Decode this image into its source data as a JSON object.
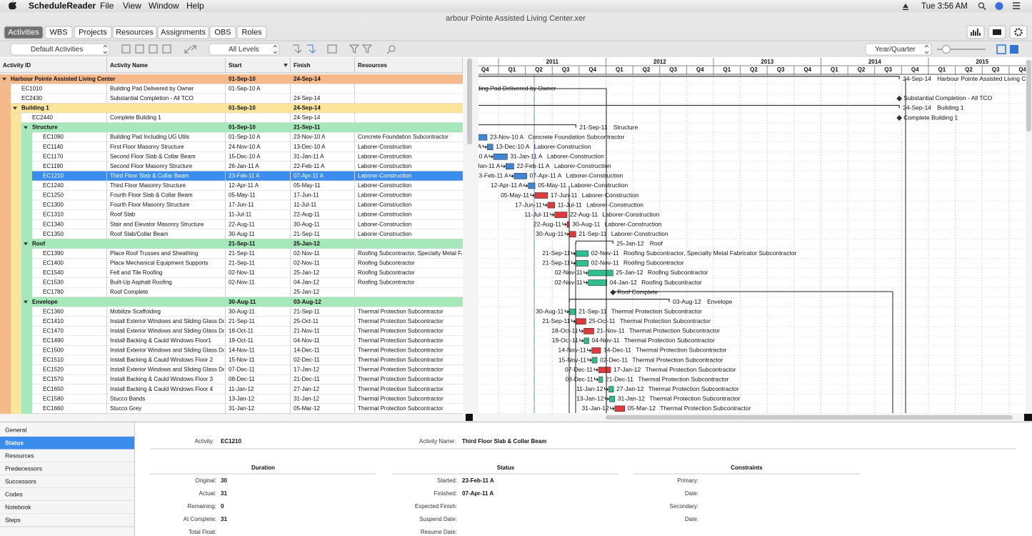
{
  "menubar": {
    "app": "ScheduleReader",
    "menus": [
      "File",
      "View",
      "Window",
      "Help"
    ],
    "clock": "Tue 3:56 AM"
  },
  "window_title": "arbour Pointe Assisted Living Center.xer",
  "tabs": [
    "Activities",
    "WBS",
    "Projects",
    "Resources",
    "Assignments",
    "OBS",
    "Roles"
  ],
  "active_tab": 0,
  "toolbar": {
    "layout": "Default Activities",
    "levels": "All Levels",
    "timescale": "Year/Quarter"
  },
  "timescale": {
    "years": [
      "2011",
      "2012",
      "2013",
      "2014",
      "2015"
    ],
    "quarters": [
      "Q1",
      "Q2",
      "Q3",
      "Q4"
    ]
  },
  "table": {
    "columns": [
      "Activity ID",
      "Activity Name",
      "Start",
      "Finish",
      "Resources"
    ],
    "selected_row": 10,
    "rows": [
      {
        "level": 0,
        "kind": "wbs",
        "id": "Harbour Pointe Assisted Living Center",
        "start": "01-Sep-10",
        "finish": "24-Sep-14"
      },
      {
        "level": 1,
        "kind": "milestone",
        "id": "EC1010",
        "name": "Building Pad Delivered by Owner",
        "start": "01-Sep-10 A"
      },
      {
        "level": 1,
        "kind": "milestone",
        "id": "EC2430",
        "name": "Substantial Completion - All TCO",
        "finish": "24-Sep-14"
      },
      {
        "level": 1,
        "kind": "wbs",
        "id": "Building 1",
        "start": "01-Sep-10",
        "finish": "24-Sep-14"
      },
      {
        "level": 2,
        "kind": "milestone",
        "id": "EC2440",
        "name": "Complete Building 1",
        "finish": "24-Sep-14"
      },
      {
        "level": 2,
        "kind": "wbs",
        "id": "Structure",
        "start": "01-Sep-10",
        "finish": "21-Sep-11"
      },
      {
        "level": 3,
        "kind": "task",
        "id": "EC1090",
        "name": "Building Pad Including UG Utils",
        "start": "01-Sep-10 A",
        "finish": "23-Nov-10 A",
        "resources": "Concrete Foundation Subcontractor",
        "color": "#3f86d6"
      },
      {
        "level": 3,
        "kind": "task",
        "id": "EC1140",
        "name": "First Floor Masonry Structure",
        "start": "24-Nov-10 A",
        "finish": "13-Dec-10 A",
        "resources": "Laborer-Construction",
        "color": "#3f86d6"
      },
      {
        "level": 3,
        "kind": "task",
        "id": "EC1170",
        "name": "Second Floor Slab & Collar Beam",
        "start": "15-Dec-10 A",
        "finish": "31-Jan-11 A",
        "resources": "Laborer-Construction",
        "color": "#3f86d6"
      },
      {
        "level": 3,
        "kind": "task",
        "id": "EC1190",
        "name": "Second Floor Masonry Structure",
        "start": "26-Jan-11 A",
        "finish": "22-Feb-11 A",
        "resources": "Laborer-Construction",
        "color": "#3f86d6"
      },
      {
        "level": 3,
        "kind": "task",
        "id": "EC1210",
        "name": "Third Floor Slab & Collar Beam",
        "start": "23-Feb-11 A",
        "finish": "07-Apr-11 A",
        "resources": "Laborer-Construction",
        "color": "#3f86d6"
      },
      {
        "level": 3,
        "kind": "task",
        "id": "EC1240",
        "name": "Third Floor Masonry Structure",
        "start": "12-Apr-11 A",
        "finish": "05-May-11",
        "resources": "Laborer-Construction",
        "color": "#3f86d6"
      },
      {
        "level": 3,
        "kind": "task",
        "id": "EC1250",
        "name": "Fourth Floor Slab & Collar Beam",
        "start": "05-May-11",
        "finish": "17-Jun-11",
        "resources": "Laborer-Construction",
        "color": "#e03a3a"
      },
      {
        "level": 3,
        "kind": "task",
        "id": "EC1300",
        "name": "Fourth Floor Masonry Structure",
        "start": "17-Jun-11",
        "finish": "11-Jul-11",
        "resources": "Laborer-Construction",
        "color": "#e03a3a"
      },
      {
        "level": 3,
        "kind": "task",
        "id": "EC1310",
        "name": "Roof Slab",
        "start": "11-Jul-11",
        "finish": "22-Aug-11",
        "resources": "Laborer-Construction",
        "color": "#e03a3a"
      },
      {
        "level": 3,
        "kind": "task",
        "id": "EC1340",
        "name": "Stair and Elevator Masonry Structure",
        "start": "22-Aug-11",
        "finish": "30-Aug-11",
        "resources": "Laborer-Construction",
        "color": "#e03a3a"
      },
      {
        "level": 3,
        "kind": "task",
        "id": "EC1350",
        "name": "Roof Slab/Collar Beam",
        "start": "30-Aug-11",
        "finish": "21-Sep-11",
        "resources": "Laborer-Construction",
        "color": "#e03a3a"
      },
      {
        "level": 2,
        "kind": "wbs",
        "id": "Roof",
        "start": "21-Sep-11",
        "finish": "25-Jan-12"
      },
      {
        "level": 3,
        "kind": "task",
        "id": "EC1390",
        "name": "Place Roof Trusses and Sheathing",
        "start": "21-Sep-11",
        "finish": "02-Nov-11",
        "resources": "Roofing Subcontractor, Specialty Metal Fabricator Subcontractor",
        "color": "#2fbf8f"
      },
      {
        "level": 3,
        "kind": "task",
        "id": "EC1400",
        "name": "Place Mechanical Equipment Supports",
        "start": "21-Sep-11",
        "finish": "02-Nov-11",
        "resources": "Roofing Subcontractor",
        "color": "#2fbf8f"
      },
      {
        "level": 3,
        "kind": "task",
        "id": "EC1540",
        "name": "Felt and Tile Roofing",
        "start": "02-Nov-11",
        "finish": "25-Jan-12",
        "resources": "Roofing Subcontractor",
        "color": "#2fbf8f"
      },
      {
        "level": 3,
        "kind": "task",
        "id": "EC1530",
        "name": "Built-Up Asphalt Roofing",
        "start": "02-Nov-11",
        "finish": "04-Jan-12",
        "resources": "Roofing Subcontractor",
        "color": "#2fbf8f"
      },
      {
        "level": 3,
        "kind": "milestone",
        "id": "EC1780",
        "name": "Roof Complete",
        "finish": "25-Jan-12"
      },
      {
        "level": 2,
        "kind": "wbs",
        "id": "Envelope",
        "start": "30-Aug-11",
        "finish": "03-Aug-12"
      },
      {
        "level": 3,
        "kind": "task",
        "id": "EC1360",
        "name": "Mobilize Scaffolding",
        "start": "30-Aug-11",
        "finish": "21-Sep-11",
        "resources": "Thermal Protection Subcontractor",
        "color": "#2fbf8f"
      },
      {
        "level": 3,
        "kind": "task",
        "id": "EC1410",
        "name": "Install Exterior Windows and Sliding Glass Doors Fl...",
        "start": "21-Sep-11",
        "finish": "25-Oct-11",
        "resources": "Thermal Protection Subcontractor",
        "color": "#e03a3a"
      },
      {
        "level": 3,
        "kind": "task",
        "id": "EC1470",
        "name": "Install Exterior Windows and Sliding Glass Doors F...",
        "start": "18-Oct-11",
        "finish": "21-Nov-11",
        "resources": "Thermal Protection Subcontractor",
        "color": "#e03a3a"
      },
      {
        "level": 3,
        "kind": "task",
        "id": "EC1490",
        "name": "Install Backing & Cauld Windows Floor1",
        "start": "19-Oct-11",
        "finish": "04-Nov-11",
        "resources": "Thermal Protection Subcontractor",
        "color": "#2fbf8f"
      },
      {
        "level": 3,
        "kind": "task",
        "id": "EC1500",
        "name": "Install Exterior Windows and Sliding Glass Doors F...",
        "start": "14-Nov-11",
        "finish": "14-Dec-11",
        "resources": "Thermal Protection Subcontractor",
        "color": "#e03a3a"
      },
      {
        "level": 3,
        "kind": "task",
        "id": "EC1510",
        "name": "Install Backing & Cauld Windows Floor 2",
        "start": "15-Nov-11",
        "finish": "02-Dec-11",
        "resources": "Thermal Protection Subcontractor",
        "color": "#2fbf8f"
      },
      {
        "level": 3,
        "kind": "task",
        "id": "EC1520",
        "name": "Install Exterior Windows and Sliding Glass Doors F...",
        "start": "07-Dec-11",
        "finish": "17-Jan-12",
        "resources": "Thermal Protection Subcontractor",
        "color": "#e03a3a"
      },
      {
        "level": 3,
        "kind": "task",
        "id": "EC1570",
        "name": "Install Backing & Cauld Windows Floor 3",
        "start": "08-Dec-11",
        "finish": "21-Dec-11",
        "resources": "Thermal Protection Subcontractor",
        "color": "#2fbf8f"
      },
      {
        "level": 3,
        "kind": "task",
        "id": "EC1650",
        "name": "Install Backing & Cauld Windows Floor 4",
        "start": "11-Jan-12",
        "finish": "27-Jan-12",
        "resources": "Thermal Protection Subcontractor",
        "color": "#2fbf8f"
      },
      {
        "level": 3,
        "kind": "task",
        "id": "EC1580",
        "name": "Stucco Bands",
        "start": "13-Jan-12",
        "finish": "31-Jan-12",
        "resources": "Thermal Protection Subcontractor",
        "color": "#2fbf8f"
      },
      {
        "level": 3,
        "kind": "task",
        "id": "EC1660",
        "name": "Stucco Grey",
        "start": "31-Jan-12",
        "finish": "05-Mar-12",
        "resources": "Thermal Protection Subcontractor",
        "color": "#e03a3a"
      }
    ]
  },
  "details": {
    "tabs": [
      "General",
      "Status",
      "Resources",
      "Predecessors",
      "Successors",
      "Codes",
      "Notebook",
      "Steps"
    ],
    "selected_tab": 1,
    "activity": {
      "label": "Activity:",
      "value": "EC1210"
    },
    "activity_name": {
      "label": "Activity Name:",
      "value": "Third Floor Slab & Collar Beam"
    },
    "sections": [
      {
        "title": "Duration",
        "fields": [
          {
            "label": "Original:",
            "value": 30
          },
          {
            "label": "Actual:",
            "value": 31
          },
          {
            "label": "Remaining:",
            "value": 0
          },
          {
            "label": "At Complete:",
            "value": 31
          },
          {
            "label": "Total Float:"
          }
        ]
      },
      {
        "title": "Status",
        "fields": [
          {
            "label": "Started:",
            "value": "23-Feb-11 A"
          },
          {
            "label": "Finished:",
            "value": "07-Apr-11 A"
          },
          {
            "label": "Expected Finish:"
          },
          {
            "label": "Suspend Date:"
          },
          {
            "label": "Resume Date:"
          }
        ]
      },
      {
        "title": "Constraints",
        "fields": [
          {
            "label": "Primary:"
          },
          {
            "label": "Date:"
          },
          {
            "label": "Secondary:"
          },
          {
            "label": "Date:"
          }
        ]
      }
    ]
  }
}
